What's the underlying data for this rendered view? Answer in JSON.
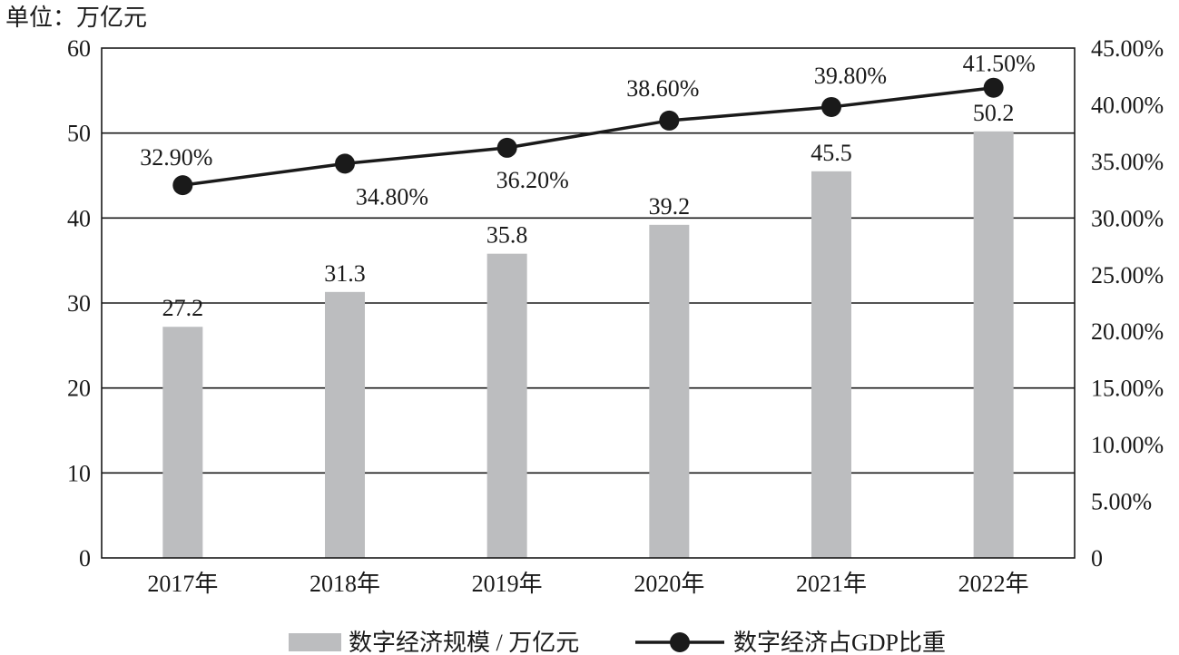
{
  "chart_data": {
    "type": "bar",
    "unit_label": "单位：万亿元",
    "categories": [
      "2017年",
      "2018年",
      "2019年",
      "2020年",
      "2021年",
      "2022年"
    ],
    "series": [
      {
        "name": "数字经济规模 / 万亿元",
        "type": "bar",
        "axis": "left",
        "values": [
          27.2,
          31.3,
          35.8,
          39.2,
          45.5,
          50.2
        ],
        "labels": [
          "27.2",
          "31.3",
          "35.8",
          "39.2",
          "45.5",
          "50.2"
        ],
        "color": "#bcbdbf"
      },
      {
        "name": "数字经济占GDP比重",
        "type": "line",
        "axis": "right",
        "values": [
          32.9,
          34.8,
          36.2,
          38.6,
          39.8,
          41.5
        ],
        "labels": [
          "32.90%",
          "34.80%",
          "36.20%",
          "38.60%",
          "39.80%",
          "41.50%"
        ],
        "color": "#1a1a1a"
      }
    ],
    "y_left": {
      "min": 0,
      "max": 60,
      "ticks": [
        "0",
        "10",
        "20",
        "30",
        "40",
        "50",
        "60"
      ]
    },
    "y_right": {
      "min": 0,
      "max": 45,
      "ticks": [
        "0",
        "5.00%",
        "10.00%",
        "15.00%",
        "20.00%",
        "25.00%",
        "30.00%",
        "35.00%",
        "40.00%",
        "45.00%"
      ]
    },
    "grid": true,
    "legend_position": "bottom"
  }
}
